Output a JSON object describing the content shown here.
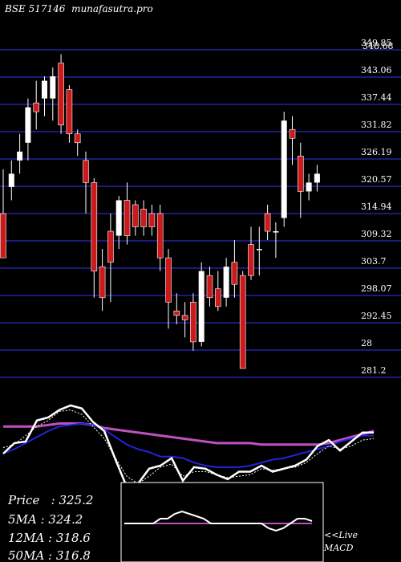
{
  "header": {
    "exchange": "BSE 517146",
    "site": "munafasutra.pro"
  },
  "y_axis_labels": [
    "349.85",
    "343.06",
    "337.44",
    "331.82",
    "326.19",
    "320.57",
    "314.94",
    "309.32",
    "303.7",
    "298.07",
    "292.45",
    "28",
    "281.2"
  ],
  "y_axis_overlap_label": "348.68",
  "stats": {
    "price_label": "Price   :",
    "price": "325.2",
    "ma5_label": "5MA :",
    "ma5": "324.2",
    "ma12_label": "12MA :",
    "ma12": "318.6",
    "ma50_label": "50MA :",
    "ma50": "316.8"
  },
  "macd_label": {
    "line1": "<<Live",
    "line2": "MACD"
  },
  "colors": {
    "background": "#000000",
    "grid": "#1a1a7a",
    "up_candle": "#ffffff",
    "down_candle": "#cc1a1a",
    "ma_fast": "#ffffff",
    "ma_mid": "#2222dd",
    "ma_slow": "#c050c0"
  },
  "chart_data": {
    "type": "candlestick",
    "y_range": [
      278,
      352
    ],
    "candles": [
      {
        "o": 315,
        "h": 325,
        "l": 305,
        "c": 305
      },
      {
        "o": 321,
        "h": 327,
        "l": 318,
        "c": 324
      },
      {
        "o": 327,
        "h": 333,
        "l": 324,
        "c": 329
      },
      {
        "o": 331,
        "h": 341,
        "l": 327,
        "c": 339
      },
      {
        "o": 340,
        "h": 345,
        "l": 334,
        "c": 338
      },
      {
        "o": 341,
        "h": 346,
        "l": 337,
        "c": 345
      },
      {
        "o": 341,
        "h": 348,
        "l": 336,
        "c": 346
      },
      {
        "o": 349,
        "h": 351,
        "l": 333,
        "c": 335
      },
      {
        "o": 343,
        "h": 344,
        "l": 331,
        "c": 333
      },
      {
        "o": 333,
        "h": 334,
        "l": 328,
        "c": 331
      },
      {
        "o": 327,
        "h": 329,
        "l": 315,
        "c": 322
      },
      {
        "o": 322,
        "h": 323,
        "l": 296,
        "c": 302
      },
      {
        "o": 303,
        "h": 307,
        "l": 293,
        "c": 296
      },
      {
        "o": 311,
        "h": 315,
        "l": 295,
        "c": 304
      },
      {
        "o": 310,
        "h": 319,
        "l": 307,
        "c": 318
      },
      {
        "o": 318,
        "h": 322,
        "l": 308,
        "c": 310
      },
      {
        "o": 317,
        "h": 318,
        "l": 310,
        "c": 312
      },
      {
        "o": 316,
        "h": 318,
        "l": 310,
        "c": 312
      },
      {
        "o": 315,
        "h": 317,
        "l": 310,
        "c": 312
      },
      {
        "o": 315,
        "h": 317,
        "l": 302,
        "c": 305
      },
      {
        "o": 305,
        "h": 307,
        "l": 289,
        "c": 295
      },
      {
        "o": 293,
        "h": 297,
        "l": 290,
        "c": 292
      },
      {
        "o": 292,
        "h": 295,
        "l": 287,
        "c": 291
      },
      {
        "o": 295,
        "h": 297,
        "l": 284,
        "c": 286
      },
      {
        "o": 286,
        "h": 304,
        "l": 285,
        "c": 302
      },
      {
        "o": 301,
        "h": 303,
        "l": 294,
        "c": 296
      },
      {
        "o": 298,
        "h": 302,
        "l": 293,
        "c": 294
      },
      {
        "o": 296,
        "h": 305,
        "l": 294,
        "c": 303
      },
      {
        "o": 304,
        "h": 309,
        "l": 296,
        "c": 299
      },
      {
        "o": 301,
        "h": 302,
        "l": 280,
        "c": 280
      },
      {
        "o": 308,
        "h": 312,
        "l": 300,
        "c": 301
      },
      {
        "o": 307,
        "h": 312,
        "l": 301,
        "c": 307
      },
      {
        "o": 315,
        "h": 317,
        "l": 309,
        "c": 311
      },
      {
        "o": 311,
        "h": 313,
        "l": 305,
        "c": 311
      },
      {
        "o": 314,
        "h": 338,
        "l": 312,
        "c": 336
      },
      {
        "o": 334,
        "h": 337,
        "l": 326,
        "c": 332
      },
      {
        "o": 328,
        "h": 331,
        "l": 314,
        "c": 320
      },
      {
        "o": 320,
        "h": 324,
        "l": 318,
        "c": 322
      },
      {
        "o": 322,
        "h": 326,
        "l": 320,
        "c": 324
      }
    ],
    "ma_fast": [
      300,
      307,
      308,
      322,
      324,
      329,
      332,
      330,
      321,
      315,
      296,
      278,
      280,
      290,
      292,
      297,
      282,
      291,
      290,
      286,
      283,
      288,
      288,
      292,
      288,
      290,
      292,
      296,
      305,
      309,
      302,
      308,
      314,
      314
    ],
    "ma_mid": [
      300,
      303,
      307,
      311,
      315,
      318,
      319,
      320,
      319,
      316,
      311,
      306,
      303,
      301,
      298,
      298,
      297,
      294,
      292,
      291,
      291,
      291,
      292,
      294,
      296,
      297,
      299,
      301,
      303,
      305,
      308,
      310,
      312,
      312
    ],
    "ma_slow": [
      318,
      318,
      318,
      318,
      319,
      320,
      320,
      320,
      319,
      317,
      316,
      315,
      314,
      313,
      312,
      311,
      310,
      309,
      308,
      307,
      307,
      307,
      307,
      306,
      306,
      306,
      306,
      306,
      306,
      307,
      309,
      311,
      313,
      315
    ],
    "ma_dotted": [
      304,
      306,
      312,
      318,
      322,
      328,
      329,
      326,
      318,
      310,
      297,
      285,
      280,
      285,
      291,
      293,
      285,
      288,
      288,
      286,
      284,
      285,
      286,
      290,
      289,
      290,
      291,
      294,
      300,
      305,
      303,
      305,
      309,
      310
    ],
    "macd": [
      0,
      0,
      0,
      0,
      0,
      2,
      2,
      4,
      5,
      4,
      3,
      2,
      0,
      0,
      0,
      0,
      0,
      0,
      0,
      0,
      -2,
      -3,
      -2,
      0,
      2,
      2,
      1
    ],
    "macd_signal": [
      0,
      0,
      0,
      0,
      0,
      0,
      0,
      0,
      0,
      0,
      0,
      0,
      0,
      0,
      0,
      0,
      0,
      0,
      0,
      0,
      0,
      0,
      0,
      0,
      0,
      0,
      0
    ]
  }
}
